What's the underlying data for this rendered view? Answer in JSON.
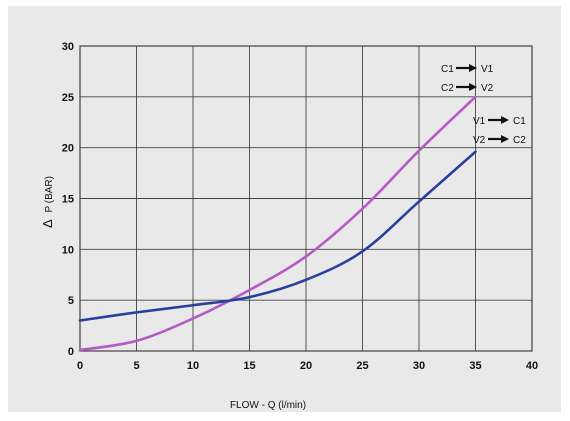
{
  "chart_data": {
    "type": "line",
    "xlabel": "FLOW - Q (l/min)",
    "ylabel_symbol": "Δ",
    "ylabel": "P (BAR)",
    "xlim": [
      0,
      40
    ],
    "ylim": [
      0,
      30
    ],
    "xticks": [
      0,
      5,
      10,
      15,
      20,
      25,
      30,
      35,
      40
    ],
    "yticks": [
      0,
      5,
      10,
      15,
      20,
      25,
      30
    ],
    "grid": true,
    "series": [
      {
        "name_from": "C1",
        "name_to": "V1",
        "name2_from": "C2",
        "name2_to": "V2",
        "color": "#b35cc4",
        "x": [
          0,
          5,
          10,
          15,
          20,
          25,
          30,
          35
        ],
        "y": [
          0.1,
          1.0,
          3.2,
          6.0,
          9.3,
          14.0,
          19.7,
          25.0
        ]
      },
      {
        "name_from": "V1",
        "name_to": "C1",
        "name2_from": "V2",
        "name2_to": "C2",
        "color": "#2b3f9e",
        "x": [
          0,
          5,
          10,
          15,
          20,
          25,
          30,
          35
        ],
        "y": [
          3.0,
          3.8,
          4.5,
          5.3,
          7.0,
          9.8,
          14.7,
          19.6
        ]
      }
    ]
  }
}
